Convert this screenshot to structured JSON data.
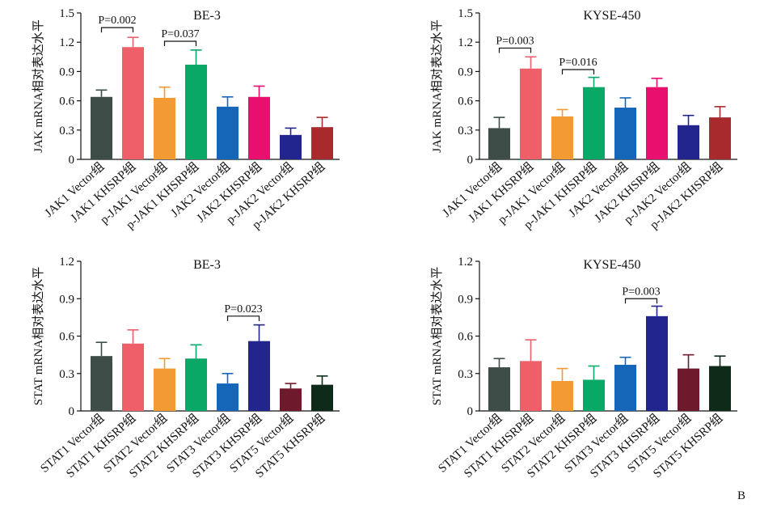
{
  "panel_label": "B",
  "colors": {
    "JAK1_Vector": "#3f4d48",
    "JAK1_KHSRP": "#ee5f6a",
    "pJAK1_Vector": "#f29b35",
    "pJAK1_KHSRP": "#0aa867",
    "JAK2_Vector": "#1565b8",
    "JAK2_KHSRP": "#e80f6e",
    "pJAK2_Vector": "#23258f",
    "pJAK2_KHSRP": "#a82a2c",
    "STAT5_Vector": "#6e1a2c",
    "STAT5_KHSRP": "#0d2b18"
  },
  "chart_data": [
    {
      "type": "bar",
      "title": "BE-3",
      "ylabel": "JAK mRNA相对表达水平",
      "ylim": [
        0,
        1.5
      ],
      "yticks": [
        "0",
        "0.3",
        "0.6",
        "0.9",
        "1.2",
        "1.5"
      ],
      "categories": [
        "JAK1 Vector组",
        "JAK1 KHSRP组",
        "p-JAK1 Vector组",
        "p-JAK1 KHSRP组",
        "JAK2 Vector组",
        "JAK2 KHSRP组",
        "p-JAK2 Vector组",
        "p-JAK2 KHSRP组"
      ],
      "values": [
        0.64,
        1.15,
        0.63,
        0.97,
        0.54,
        0.64,
        0.25,
        0.33
      ],
      "errors": [
        0.07,
        0.1,
        0.11,
        0.15,
        0.1,
        0.11,
        0.07,
        0.1
      ],
      "colors": [
        "#3f4d48",
        "#ee5f6a",
        "#f29b35",
        "#0aa867",
        "#1565b8",
        "#e80f6e",
        "#23258f",
        "#a82a2c"
      ],
      "annotations": [
        {
          "text": "P=0.002",
          "from": 0,
          "to": 1,
          "y": 1.35
        },
        {
          "text": "P=0.037",
          "from": 2,
          "to": 3,
          "y": 1.21
        }
      ]
    },
    {
      "type": "bar",
      "title": "KYSE-450",
      "ylabel": "JAK mRNA相对表达水平",
      "ylim": [
        0,
        1.5
      ],
      "yticks": [
        "0",
        "0.3",
        "0.6",
        "0.9",
        "1.2",
        "1.5"
      ],
      "categories": [
        "JAK1 Vector组",
        "JAK1 KHSRP组",
        "p-JAK1 Vector组",
        "p-JAK1 KHSRP组",
        "JAK2 Vector组",
        "JAK2 KHSRP组",
        "p-JAK2 Vector组",
        "p-JAK2 KHSRP组"
      ],
      "values": [
        0.32,
        0.93,
        0.44,
        0.74,
        0.53,
        0.74,
        0.35,
        0.43
      ],
      "errors": [
        0.11,
        0.12,
        0.07,
        0.1,
        0.1,
        0.09,
        0.1,
        0.11
      ],
      "colors": [
        "#3f4d48",
        "#ee5f6a",
        "#f29b35",
        "#0aa867",
        "#1565b8",
        "#e80f6e",
        "#23258f",
        "#a82a2c"
      ],
      "annotations": [
        {
          "text": "P=0.003",
          "from": 0,
          "to": 1,
          "y": 1.14
        },
        {
          "text": "P=0.016",
          "from": 2,
          "to": 3,
          "y": 0.92
        }
      ]
    },
    {
      "type": "bar",
      "title": "BE-3",
      "ylabel": "STAT mRNA相对表达水平",
      "ylim": [
        0,
        1.2
      ],
      "yticks": [
        "0",
        "0.3",
        "0.6",
        "0.9",
        "1.2"
      ],
      "categories": [
        "STAT1 Vector组",
        "STAT1 KHSRP组",
        "STAT2 Vector组",
        "STAT2 KHSRP组",
        "STAT3 Vector组",
        "STAT3 KHSRP组",
        "STAT5 Vector组",
        "STAT5 KHSRP组"
      ],
      "values": [
        0.44,
        0.54,
        0.34,
        0.42,
        0.22,
        0.56,
        0.18,
        0.21
      ],
      "errors": [
        0.11,
        0.11,
        0.08,
        0.11,
        0.08,
        0.13,
        0.04,
        0.07
      ],
      "colors": [
        "#3f4d48",
        "#ee5f6a",
        "#f29b35",
        "#0aa867",
        "#1565b8",
        "#23258f",
        "#6e1a2c",
        "#0d2b18"
      ],
      "annotations": [
        {
          "text": "P=0.023",
          "from": 4,
          "to": 5,
          "y": 0.76
        }
      ]
    },
    {
      "type": "bar",
      "title": "KYSE-450",
      "ylabel": "STAT mRNA相对表达水平",
      "ylim": [
        0,
        1.2
      ],
      "yticks": [
        "0",
        "0.3",
        "0.6",
        "0.9",
        "1.2"
      ],
      "categories": [
        "STAT1 Vector组",
        "STAT1 KHSRP组",
        "STAT2 Vector组",
        "STAT2 KHSRP组",
        "STAT3 Vector组",
        "STAT3 KHSRP组",
        "STAT5 Vector组",
        "STAT5 KHSRP组"
      ],
      "values": [
        0.35,
        0.4,
        0.24,
        0.25,
        0.37,
        0.76,
        0.34,
        0.36
      ],
      "errors": [
        0.07,
        0.17,
        0.1,
        0.11,
        0.06,
        0.08,
        0.11,
        0.08
      ],
      "colors": [
        "#3f4d48",
        "#ee5f6a",
        "#f29b35",
        "#0aa867",
        "#1565b8",
        "#23258f",
        "#6e1a2c",
        "#0d2b18"
      ],
      "annotations": [
        {
          "text": "P=0.003",
          "from": 4,
          "to": 5,
          "y": 0.9
        }
      ]
    }
  ]
}
